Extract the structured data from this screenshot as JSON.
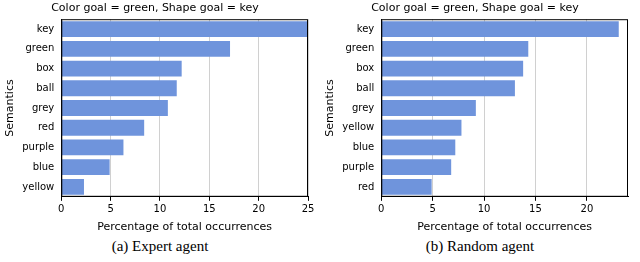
{
  "chart_data": [
    {
      "type": "bar",
      "orientation": "horizontal",
      "title": "Color goal = green, Shape goal = key",
      "caption": "(a) Expert agent",
      "xlabel": "Percentage of total occurrences",
      "ylabel": "Semantics",
      "categories": [
        "key",
        "green",
        "box",
        "ball",
        "grey",
        "red",
        "purple",
        "blue",
        "yellow"
      ],
      "values": [
        25,
        17.1,
        12.2,
        11.7,
        10.8,
        8.4,
        6.3,
        4.9,
        2.3
      ],
      "color": "#6f94dc",
      "xlim": [
        0,
        25
      ],
      "xticks": [
        0,
        5,
        10,
        15,
        20,
        25
      ],
      "grid": true
    },
    {
      "type": "bar",
      "orientation": "horizontal",
      "title": "Color goal = green, Shape goal = key",
      "caption": "(b) Random agent",
      "xlabel": "Percentage of total occurrences",
      "ylabel": "Semantics",
      "categories": [
        "key",
        "green",
        "box",
        "ball",
        "grey",
        "yellow",
        "blue",
        "purple",
        "red"
      ],
      "values": [
        23.1,
        14.3,
        13.8,
        13.0,
        9.2,
        7.8,
        7.2,
        6.8,
        4.9
      ],
      "color": "#6f94dc",
      "xlim": [
        0,
        24
      ],
      "xticks": [
        0,
        5,
        10,
        15,
        20
      ],
      "grid": true
    }
  ]
}
